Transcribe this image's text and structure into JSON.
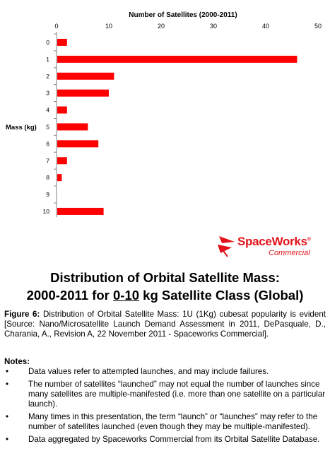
{
  "chart_data": {
    "type": "bar",
    "orientation": "horizontal",
    "title": "Number of Satellites (2000-2011)",
    "ylabel": "Mass (kg)",
    "categories": [
      "0",
      "1",
      "2",
      "3",
      "4",
      "5",
      "6",
      "7",
      "8",
      "9",
      "10"
    ],
    "values": [
      2,
      46,
      11,
      10,
      2,
      6,
      8,
      2,
      1,
      0,
      9
    ],
    "xlim": [
      0,
      50
    ],
    "xticks": [
      "0",
      "10",
      "20",
      "30",
      "40",
      "50"
    ],
    "bar_color": "#ff0000",
    "grid": false,
    "legend": "none"
  },
  "logo": {
    "word": "SpaceWorks",
    "reg": "®",
    "sub": "Commercial",
    "color": "#e3131b"
  },
  "title": {
    "line1": "Distribution of Orbital Satellite Mass:",
    "line2_a": "2000-2011 for ",
    "line2_u": "0-10",
    "line2_b": " kg Satellite Class (Global)"
  },
  "caption": {
    "label": "Figure 6:",
    "text": " Distribution of Orbital Satellite Mass: 1U (1Kg) cubesat popularity is evident [Source: Nano/Microsatellite Launch Demand Assessment in 2011, DePasquale, D., Charania, A., Revision A, 22 November 2011 - Spaceworks Commercial]."
  },
  "notes": {
    "heading": "Notes:",
    "bullet": "•",
    "items": [
      "Data values refer to attempted launches, and may include failures.",
      "The number of satellites “launched” may not equal the number of launches since many satellites are multiple-manifested (i.e. more than one satellite on a particular launch).",
      "Many times in this presentation, the term “launch” or “launches” may refer to the number of satellites launched (even though they may be multiple-manifested).",
      "Data aggregated by Spaceworks Commercial from its Orbital Satellite Database."
    ]
  }
}
